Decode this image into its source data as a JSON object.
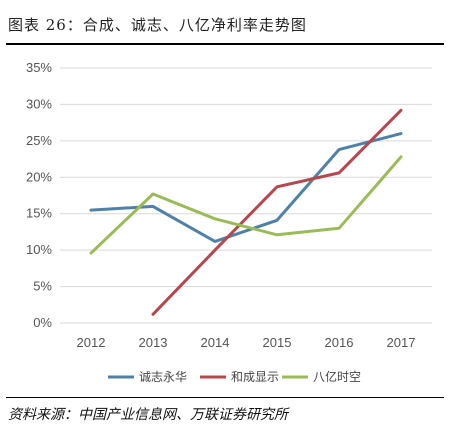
{
  "header": {
    "title": "图表 26：合成、诚志、八亿净利率走势图"
  },
  "footer": {
    "source": "资料来源：中国产业信息网、万联证券研究所"
  },
  "colors": {
    "series_1": "#4f81a8",
    "series_2": "#b8474d",
    "series_3": "#9bbb59",
    "grid": "#d9d9d9"
  },
  "chart_data": {
    "type": "line",
    "title": "",
    "xlabel": "",
    "ylabel": "",
    "x": [
      "2012",
      "2013",
      "2014",
      "2015",
      "2016",
      "2017"
    ],
    "ylim": [
      0,
      35
    ],
    "yticks": [
      "0%",
      "5%",
      "10%",
      "15%",
      "20%",
      "25%",
      "30%",
      "35%"
    ],
    "grid": true,
    "legend": "bottom",
    "series": [
      {
        "name": "诚志永华",
        "values": [
          15.5,
          16.0,
          11.2,
          14.1,
          23.8,
          26.0
        ]
      },
      {
        "name": "和成显示",
        "values": [
          null,
          1.2,
          10.0,
          18.7,
          20.6,
          29.2
        ]
      },
      {
        "name": "八亿时空",
        "values": [
          9.6,
          17.7,
          14.3,
          12.1,
          13.0,
          22.8
        ]
      }
    ]
  }
}
